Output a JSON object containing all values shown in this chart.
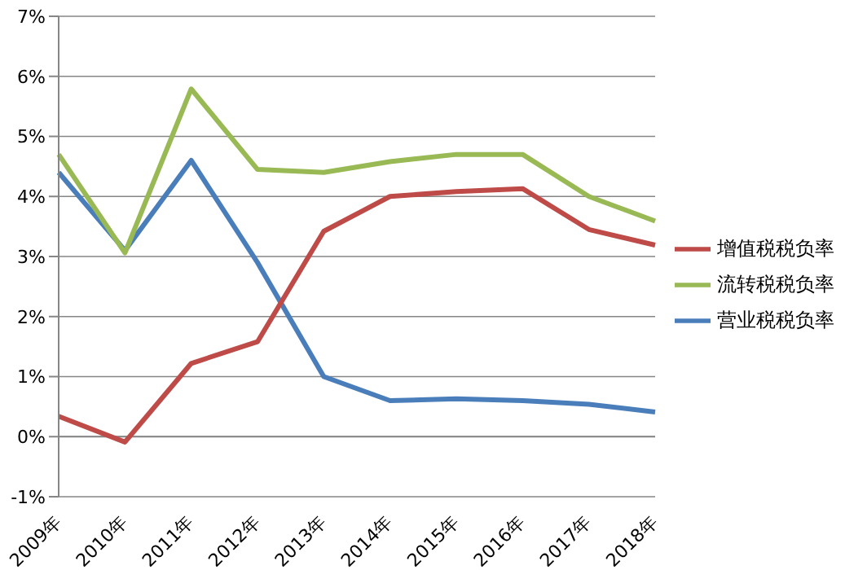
{
  "chart_data": {
    "type": "line",
    "categories": [
      "2009年",
      "2010年",
      "2011年",
      "2012年",
      "2013年",
      "2014年",
      "2015年",
      "2016年",
      "2017年",
      "2018年"
    ],
    "series": [
      {
        "name": "营业税税负率",
        "color": "#4a7ebb",
        "values": [
          4.4,
          3.1,
          4.6,
          2.9,
          1.0,
          0.6,
          0.63,
          0.6,
          0.54,
          0.41
        ]
      },
      {
        "name": "增值税税负率",
        "color": "#be4b48",
        "values": [
          0.34,
          -0.09,
          1.22,
          1.58,
          3.42,
          4.0,
          4.08,
          4.13,
          3.45,
          3.19
        ]
      },
      {
        "name": "流转税税负率",
        "color": "#98b954",
        "values": [
          4.7,
          3.06,
          5.79,
          4.45,
          4.4,
          4.58,
          4.7,
          4.7,
          4.0,
          3.59
        ]
      }
    ],
    "ylim": [
      -1,
      7
    ],
    "yticks": [
      {
        "value": -1,
        "label": "-1%"
      },
      {
        "value": 0,
        "label": "0%"
      },
      {
        "value": 1,
        "label": "1%"
      },
      {
        "value": 2,
        "label": "2%"
      },
      {
        "value": 3,
        "label": "3%"
      },
      {
        "value": 4,
        "label": "4%"
      },
      {
        "value": 5,
        "label": "5%"
      },
      {
        "value": 6,
        "label": "6%"
      },
      {
        "value": 7,
        "label": "7%"
      }
    ],
    "grid": "y",
    "legend": "right",
    "marker": "none",
    "line_style": "solid"
  }
}
